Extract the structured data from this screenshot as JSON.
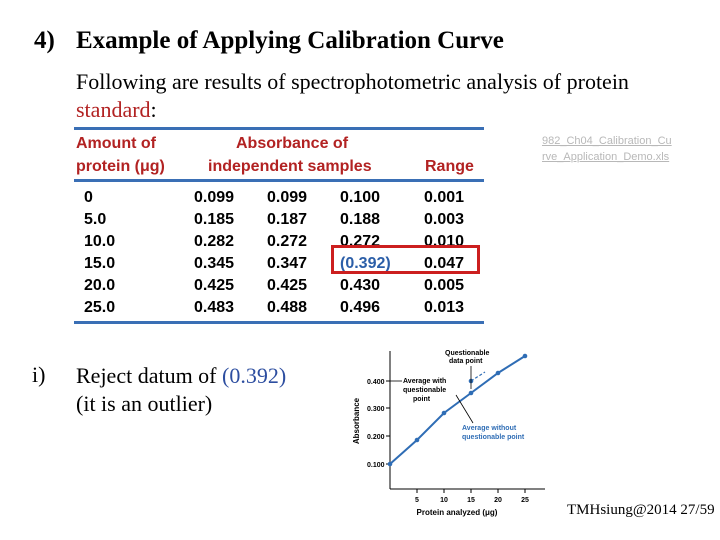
{
  "title": {
    "number": "4)",
    "text": "Example of Applying Calibration Curve"
  },
  "intro": {
    "line": "Following are results of spectrophotometric analysis of protein",
    "highlight": "standard",
    "colon": ":"
  },
  "link_text": "982_Ch04_Calibration_Curve_Application_Demo.xls",
  "table": {
    "header_amount_1": "Amount of",
    "header_amount_2": "protein (μg)",
    "header_abs_1": "Absorbance of",
    "header_abs_2": "independent samples",
    "header_range": "Range",
    "rows": [
      [
        "0",
        "0.099",
        "0.099",
        "0.100",
        "0.001"
      ],
      [
        "5.0",
        "0.185",
        "0.187",
        "0.188",
        "0.003"
      ],
      [
        "10.0",
        "0.282",
        "0.272",
        "0.272",
        "0.010"
      ],
      [
        "15.0",
        "0.345",
        "0.347",
        "(0.392)",
        "0.047"
      ],
      [
        "20.0",
        "0.425",
        "0.425",
        "0.430",
        "0.005"
      ],
      [
        "25.0",
        "0.483",
        "0.488",
        "0.496",
        "0.013"
      ]
    ]
  },
  "reject": {
    "label": "i)",
    "line1_prefix": "Reject datum of ",
    "value": "(0.392)",
    "line2": "(it is an outlier)"
  },
  "graph": {
    "ylabel": "Absorbance",
    "xlabel": "Protein analyzed (μg)",
    "yticks": [
      "0.400",
      "0.300",
      "0.200",
      "0.100"
    ],
    "xticks": [
      "5",
      "10",
      "15",
      "20",
      "25"
    ],
    "ann_questionable_1": "Questionable",
    "ann_questionable_2": "data point",
    "ann_avg_with_1": "Average with",
    "ann_avg_with_2": "questionable",
    "ann_avg_with_3": "point",
    "ann_avg_without_1": "Average without",
    "ann_avg_without_2": "questionable point",
    "accent": "#2f6db5"
  },
  "footer": "TMHsiung@2014 27/59"
}
